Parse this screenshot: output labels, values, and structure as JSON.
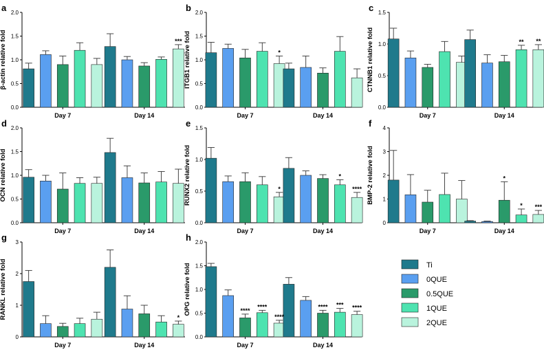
{
  "colors": {
    "Ti": "#1f7a8c",
    "0QUE": "#5a9ff0",
    "0.5QUE": "#2a9a6a",
    "1QUE": "#4ee3b0",
    "2QUE": "#b9f3dd"
  },
  "legend": [
    "Ti",
    "0QUE",
    "0.5QUE",
    "1QUE",
    "2QUE"
  ],
  "chart_data": [
    {
      "panel": "a",
      "type": "bar",
      "ylabel": "β-actin relative fold",
      "ylim": [
        0,
        2.0
      ],
      "yticks": [
        "0.0",
        "0.5",
        "1.0",
        "1.5",
        "2.0"
      ],
      "categories": [
        "Day 7",
        "Day 14"
      ],
      "series": [
        {
          "name": "Ti",
          "values": [
            0.81,
            1.28
          ],
          "errors": [
            0.12,
            0.27
          ]
        },
        {
          "name": "0QUE",
          "values": [
            1.11,
            1.0
          ],
          "errors": [
            0.08,
            0.07
          ]
        },
        {
          "name": "0.5QUE",
          "values": [
            0.9,
            0.87
          ],
          "errors": [
            0.18,
            0.07
          ]
        },
        {
          "name": "1QUE",
          "values": [
            1.2,
            1.01
          ],
          "errors": [
            0.16,
            0.05
          ]
        },
        {
          "name": "2QUE",
          "values": [
            0.9,
            1.23
          ],
          "errors": [
            0.13,
            0.09
          ]
        }
      ],
      "annotations": [
        {
          "group": 1,
          "series": 4,
          "text": "***"
        }
      ]
    },
    {
      "panel": "b",
      "type": "bar",
      "ylabel": "ITGB1 relative fold",
      "ylim": [
        0,
        2.0
      ],
      "yticks": [
        "0.0",
        "0.5",
        "1.0",
        "1.5",
        "2.0"
      ],
      "categories": [
        "Day 7",
        "Day 14"
      ],
      "series": [
        {
          "name": "Ti",
          "values": [
            1.15,
            0.81
          ],
          "errors": [
            0.22,
            0.12
          ]
        },
        {
          "name": "0QUE",
          "values": [
            1.24,
            0.84
          ],
          "errors": [
            0.09,
            0.24
          ]
        },
        {
          "name": "0.5QUE",
          "values": [
            1.04,
            0.72
          ],
          "errors": [
            0.18,
            0.11
          ]
        },
        {
          "name": "1QUE",
          "values": [
            1.18,
            1.18
          ],
          "errors": [
            0.18,
            0.31
          ]
        },
        {
          "name": "2QUE",
          "values": [
            0.92,
            0.62
          ],
          "errors": [
            0.16,
            0.19
          ]
        }
      ],
      "annotations": [
        {
          "group": 0,
          "series": 4,
          "text": "*"
        }
      ]
    },
    {
      "panel": "c",
      "type": "bar",
      "ylabel": "CTNNB1 relative fold",
      "ylim": [
        0,
        1.5
      ],
      "yticks": [
        "0.0",
        "0.5",
        "1.0",
        "1.5"
      ],
      "categories": [
        "Day 7",
        "Day 14"
      ],
      "series": [
        {
          "name": "Ti",
          "values": [
            1.08,
            1.07
          ],
          "errors": [
            0.17,
            0.15
          ]
        },
        {
          "name": "0QUE",
          "values": [
            0.78,
            0.7
          ],
          "errors": [
            0.11,
            0.13
          ]
        },
        {
          "name": "0.5QUE",
          "values": [
            0.63,
            0.72
          ],
          "errors": [
            0.05,
            0.1
          ]
        },
        {
          "name": "1QUE",
          "values": [
            0.88,
            0.91
          ],
          "errors": [
            0.16,
            0.07
          ]
        },
        {
          "name": "2QUE",
          "values": [
            0.71,
            0.91
          ],
          "errors": [
            0.1,
            0.08
          ]
        }
      ],
      "annotations": [
        {
          "group": 1,
          "series": 3,
          "text": "**"
        },
        {
          "group": 1,
          "series": 4,
          "text": "**"
        }
      ]
    },
    {
      "panel": "d",
      "type": "bar",
      "ylabel": "OCN relative fold",
      "ylim": [
        0,
        2.0
      ],
      "yticks": [
        "0.0",
        "0.5",
        "1.0",
        "1.5",
        "2.0"
      ],
      "categories": [
        "Day 7",
        "Day 14"
      ],
      "series": [
        {
          "name": "Ti",
          "values": [
            0.96,
            1.48
          ],
          "errors": [
            0.16,
            0.3
          ]
        },
        {
          "name": "0QUE",
          "values": [
            0.88,
            0.95
          ],
          "errors": [
            0.12,
            0.25
          ]
        },
        {
          "name": "0.5QUE",
          "values": [
            0.71,
            0.84
          ],
          "errors": [
            0.34,
            0.21
          ]
        },
        {
          "name": "1QUE",
          "values": [
            0.83,
            0.86
          ],
          "errors": [
            0.12,
            0.22
          ]
        },
        {
          "name": "2QUE",
          "values": [
            0.83,
            0.83
          ],
          "errors": [
            0.13,
            0.3
          ]
        }
      ],
      "annotations": []
    },
    {
      "panel": "e",
      "type": "bar",
      "ylabel": "RUNX2 relative fold",
      "ylim": [
        0,
        1.5
      ],
      "yticks": [
        "0.0",
        "0.5",
        "1.0",
        "1.5"
      ],
      "categories": [
        "Day 7",
        "Day 14"
      ],
      "series": [
        {
          "name": "Ti",
          "values": [
            1.02,
            0.86
          ],
          "errors": [
            0.17,
            0.17
          ]
        },
        {
          "name": "0QUE",
          "values": [
            0.65,
            0.75
          ],
          "errors": [
            0.09,
            0.07
          ]
        },
        {
          "name": "0.5QUE",
          "values": [
            0.65,
            0.7
          ],
          "errors": [
            0.14,
            0.06
          ]
        },
        {
          "name": "1QUE",
          "values": [
            0.6,
            0.6
          ],
          "errors": [
            0.13,
            0.08
          ]
        },
        {
          "name": "2QUE",
          "values": [
            0.41,
            0.4
          ],
          "errors": [
            0.07,
            0.08
          ]
        }
      ],
      "annotations": [
        {
          "group": 0,
          "series": 4,
          "text": "*"
        },
        {
          "group": 1,
          "series": 3,
          "text": "*"
        },
        {
          "group": 1,
          "series": 4,
          "text": "****"
        }
      ]
    },
    {
      "panel": "f",
      "type": "bar",
      "ylabel": "BMP-2 relative fold",
      "ylim": [
        0,
        4
      ],
      "yticks": [
        "0",
        "1",
        "2",
        "3",
        "4"
      ],
      "categories": [
        "Day 7",
        "Day 14"
      ],
      "series": [
        {
          "name": "Ti",
          "values": [
            1.8,
            0.07
          ],
          "errors": [
            1.25,
            0.02
          ]
        },
        {
          "name": "0QUE",
          "values": [
            1.18,
            0.05
          ],
          "errors": [
            0.85,
            0.02
          ]
        },
        {
          "name": "0.5QUE",
          "values": [
            0.87,
            0.95
          ],
          "errors": [
            0.5,
            0.78
          ]
        },
        {
          "name": "1QUE",
          "values": [
            1.19,
            0.33
          ],
          "errors": [
            0.9,
            0.25
          ]
        },
        {
          "name": "2QUE",
          "values": [
            1.0,
            0.35
          ],
          "errors": [
            0.78,
            0.17
          ]
        }
      ],
      "annotations": [
        {
          "group": 1,
          "series": 2,
          "text": "*"
        },
        {
          "group": 1,
          "series": 3,
          "text": "*"
        },
        {
          "group": 1,
          "series": 4,
          "text": "***"
        }
      ]
    },
    {
      "panel": "g",
      "type": "bar",
      "ylabel": "RANKL relative fold",
      "ylim": [
        0,
        3
      ],
      "yticks": [
        "0",
        "1",
        "2",
        "3"
      ],
      "categories": [
        "Day 7",
        "Day 14"
      ],
      "series": [
        {
          "name": "Ti",
          "values": [
            1.75,
            2.2
          ],
          "errors": [
            0.35,
            0.55
          ]
        },
        {
          "name": "0QUE",
          "values": [
            0.42,
            0.88
          ],
          "errors": [
            0.25,
            0.42
          ]
        },
        {
          "name": "0.5QUE",
          "values": [
            0.33,
            0.73
          ],
          "errors": [
            0.1,
            0.27
          ]
        },
        {
          "name": "1QUE",
          "values": [
            0.42,
            0.47
          ],
          "errors": [
            0.17,
            0.2
          ]
        },
        {
          "name": "2QUE",
          "values": [
            0.56,
            0.4
          ],
          "errors": [
            0.22,
            0.1
          ]
        }
      ],
      "annotations": [
        {
          "group": 1,
          "series": 4,
          "text": "*"
        }
      ]
    },
    {
      "panel": "h",
      "type": "bar",
      "ylabel": "OPG relative fold",
      "ylim": [
        0,
        2.0
      ],
      "yticks": [
        "0.0",
        "0.5",
        "1.0",
        "1.5",
        "2.0"
      ],
      "categories": [
        "Day 7",
        "Day 14"
      ],
      "series": [
        {
          "name": "Ti",
          "values": [
            1.48,
            1.11
          ],
          "errors": [
            0.07,
            0.14
          ]
        },
        {
          "name": "0QUE",
          "values": [
            0.87,
            0.77
          ],
          "errors": [
            0.12,
            0.08
          ]
        },
        {
          "name": "0.5QUE",
          "values": [
            0.4,
            0.5
          ],
          "errors": [
            0.08,
            0.06
          ]
        },
        {
          "name": "1QUE",
          "values": [
            0.51,
            0.52
          ],
          "errors": [
            0.05,
            0.08
          ]
        },
        {
          "name": "2QUE",
          "values": [
            0.29,
            0.47
          ],
          "errors": [
            0.06,
            0.07
          ]
        }
      ],
      "annotations": [
        {
          "group": 0,
          "series": 2,
          "text": "****"
        },
        {
          "group": 0,
          "series": 3,
          "text": "****"
        },
        {
          "group": 0,
          "series": 4,
          "text": "****"
        },
        {
          "group": 1,
          "series": 2,
          "text": "****"
        },
        {
          "group": 1,
          "series": 3,
          "text": "***"
        },
        {
          "group": 1,
          "series": 4,
          "text": "****"
        }
      ]
    }
  ]
}
